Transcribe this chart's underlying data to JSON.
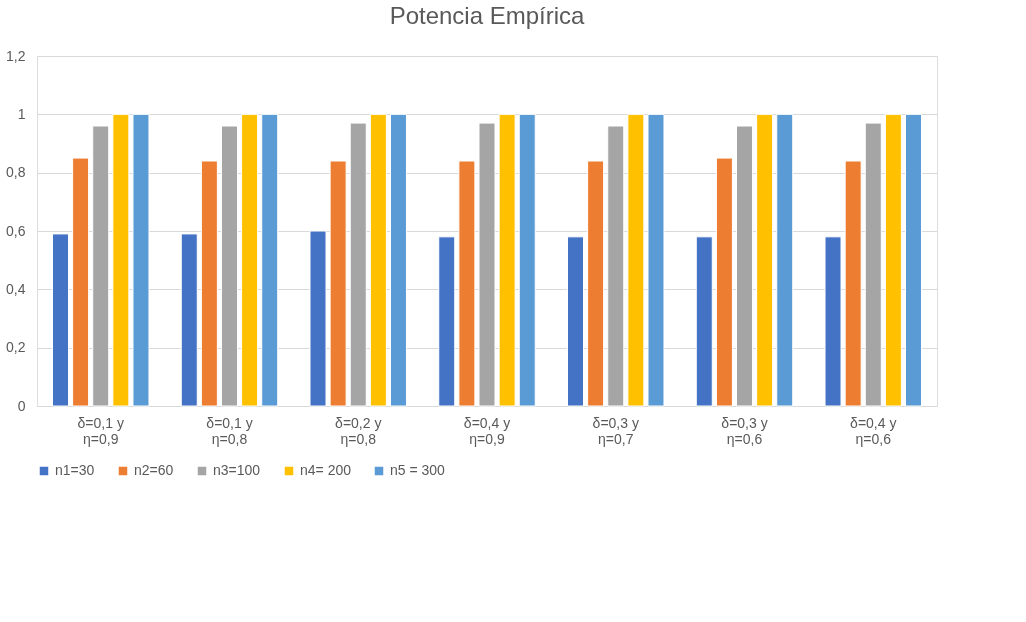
{
  "chart_data": {
    "type": "bar",
    "title": "Potencia Empírica",
    "categories": [
      "δ=0,1 y\nη=0,9",
      "δ=0,1 y\nη=0,8",
      "δ=0,2 y\nη=0,8",
      "δ=0,4 y\nη=0,9",
      "δ=0,3 y\nη=0,7",
      "δ=0,3 y\nη=0,6",
      "δ=0,4 y\nη=0,6"
    ],
    "series": [
      {
        "name": "n1=30",
        "color": "#4472c4",
        "values": [
          0.59,
          0.59,
          0.6,
          0.58,
          0.58,
          0.58,
          0.58
        ]
      },
      {
        "name": "n2=60",
        "color": "#ed7d31",
        "values": [
          0.85,
          0.84,
          0.84,
          0.84,
          0.84,
          0.85,
          0.84
        ]
      },
      {
        "name": "n3=100",
        "color": "#a5a5a5",
        "values": [
          0.96,
          0.96,
          0.97,
          0.97,
          0.96,
          0.96,
          0.97
        ]
      },
      {
        "name": "n4= 200",
        "color": "#ffc000",
        "values": [
          1,
          1,
          1,
          1,
          1,
          1,
          1
        ]
      },
      {
        "name": "n5 = 300",
        "color": "#5b9bd5",
        "values": [
          1,
          1,
          1,
          1,
          1,
          1,
          1
        ]
      }
    ],
    "ylim": [
      0,
      1.2
    ],
    "yticks": [
      0,
      {
        "value": 0.2,
        "label": "0,2"
      },
      {
        "value": 0.4,
        "label": "0,4"
      },
      {
        "value": 0.6,
        "label": "0,6"
      },
      {
        "value": 0.8,
        "label": "0,8"
      },
      1,
      {
        "value": 1.2,
        "label": "1,2"
      }
    ],
    "grid": "y",
    "legend": "bottom"
  }
}
